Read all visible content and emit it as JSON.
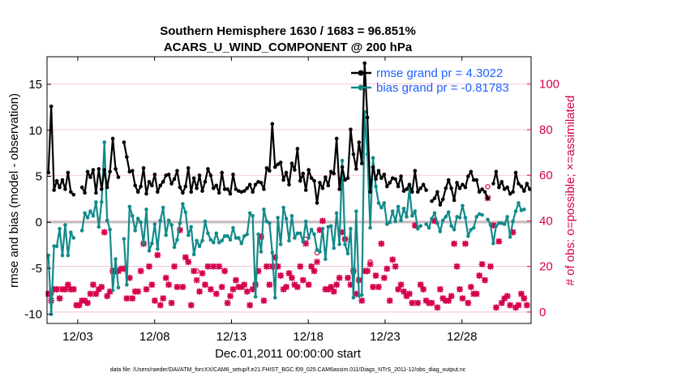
{
  "chart_data": {
    "type": "line",
    "title_line1": "Southern Hemisphere 1630 / 1683 = 96.851%",
    "title_line2": "ACARS_U_WIND_COMPONENT @ 200 hPa",
    "xlabel": "Dec.01,2011 00:00:00 start",
    "ylabel": "rmse and bias (model - observation)",
    "y2label": "# of obs: o=possible; ×=assimilated",
    "footer": "data file: /Users/raeder/DAI/ATM_forcXX/CAM6_setup/f.e21.FHIST_BGC.f09_025.CAM6assim.011/Diags_NTrS_2011-12/obs_diag_output.nc",
    "xlim": [
      0,
      31.5
    ],
    "ylim": [
      -11,
      18
    ],
    "y2lim": [
      -5,
      112
    ],
    "xticks": [
      2,
      7,
      12,
      17,
      22,
      27
    ],
    "xtick_labels": [
      "12/03",
      "12/08",
      "12/13",
      "12/18",
      "12/23",
      "12/28"
    ],
    "yticks": [
      -10,
      -5,
      0,
      5,
      10,
      15
    ],
    "ytick_labels": [
      "-10",
      "-5",
      "0",
      "5",
      "10",
      "15"
    ],
    "y2ticks": [
      0,
      20,
      40,
      60,
      80,
      100
    ],
    "y2tick_labels": [
      "0",
      "20",
      "40",
      "60",
      "80",
      "100"
    ],
    "colors": {
      "rmse": "#000000",
      "bias": "#138a8a",
      "obs": "#d6004f",
      "legend_text": "#1f5fff",
      "zero_line": "#c0c0c0",
      "grid": "#f2b8cc"
    },
    "series": [
      {
        "name": "rmse",
        "legend": "rmse grand pr = 4.3022",
        "values": [
          5.4,
          12.6,
          3.5,
          4.5,
          3.8,
          4.6,
          3.6,
          5.4,
          3.3,
          3.0,
          null,
          null,
          3.8,
          3.2,
          5.5,
          4.9,
          5.7,
          3.2,
          5.8,
          3.6,
          5.7,
          3.8,
          5.5,
          9.1,
          5.8,
          4.9,
          null,
          8.7,
          7.1,
          5.5,
          5.6,
          4.0,
          3.3,
          3.9,
          5.9,
          3.1,
          4.4,
          4.0,
          5.2,
          3.3,
          4.0,
          4.4,
          5.1,
          5.2,
          4.2,
          4.7,
          5.6,
          3.8,
          3.2,
          3.9,
          5.9,
          3.3,
          4.8,
          3.7,
          5.1,
          3.4,
          4.4,
          5.8,
          5.1,
          3.7,
          4.0,
          3.2,
          5.4,
          3.6,
          3.6,
          3.1,
          5.2,
          3.6,
          3.4,
          3.3,
          3.4,
          3.7,
          4.1,
          3.3,
          4.1,
          4.4,
          4.3,
          3.6,
          5.9,
          5.6,
          10.7,
          6.0,
          6.3,
          6.5,
          4.6,
          5.4,
          4.1,
          6.4,
          5.7,
          8.0,
          4.5,
          5.3,
          3.5,
          5.7,
          4.8,
          4.5,
          2.1,
          4.3,
          3.7,
          4.9,
          4.0,
          5.5,
          5.3,
          9.1,
          3.6,
          6.0,
          4.6,
          4.8,
          10.1,
          7.4,
          5.8,
          8.7,
          6.4,
          17.3,
          11.4,
          3.3,
          6.0,
          4.7,
          5.6,
          4.8,
          5.2,
          3.9,
          4.3,
          4.8,
          4.7,
          3.9,
          5.0,
          3.4,
          3.6,
          4.1,
          3.3,
          5.6,
          3.3,
          3.7,
          4.1,
          3.5,
          null,
          2.3,
          2.6,
          3.3,
          1.9,
          2.5,
          3.7,
          4.6,
          3.7,
          2.4,
          4.3,
          3.7,
          4.1,
          3.8,
          5.0,
          5.5,
          4.6,
          4.6,
          3.3,
          3.6,
          3.3,
          2.6,
          null,
          4.2,
          5.5,
          3.8,
          4.4,
          3.6,
          3.8,
          3.1,
          3.3,
          5.4,
          4.2,
          3.9,
          3.4,
          4.2,
          3.6
        ]
      },
      {
        "name": "bias",
        "legend": "bias grand pr = -0.81783",
        "values": [
          -3.6,
          -10.0,
          -2.6,
          -2.6,
          -0.7,
          -3.6,
          -0.3,
          -3.6,
          -1.1,
          -1.7,
          null,
          null,
          -0.9,
          1.0,
          0.5,
          1.2,
          0.7,
          2.2,
          -0.5,
          2.2,
          8.7,
          0.2,
          -0.8,
          -7.4,
          -4.0,
          -7.1,
          null,
          -1.8,
          -6.8,
          1.7,
          0.7,
          -0.9,
          0.4,
          0.0,
          -2.3,
          1.4,
          -3.1,
          -2.3,
          -0.2,
          -2.9,
          0.2,
          1.6,
          -1.4,
          0.2,
          -0.3,
          -2.7,
          -1.9,
          -0.1,
          2.0,
          1.1,
          -1.4,
          -0.5,
          -3.5,
          -2.0,
          -2.6,
          -2.0,
          0.1,
          -1.2,
          -1.9,
          -2.2,
          -1.2,
          -2.2,
          -2.0,
          -1.5,
          -1.5,
          -1.9,
          -0.6,
          -1.7,
          -1.7,
          -2.3,
          -1.5,
          -1.3,
          1.0,
          0.7,
          -8.1,
          -1.3,
          -3.2,
          1.4,
          0.1,
          -0.1,
          -3.3,
          -8.2,
          0.5,
          -2.4,
          1.6,
          0.4,
          -2.0,
          0.7,
          -1.7,
          -1.2,
          -1.2,
          -2.1,
          0.1,
          -1.7,
          -0.8,
          -1.3,
          -3.0,
          -3.2,
          -0.7,
          -4.0,
          -0.5,
          -0.4,
          -2.8,
          1.0,
          -2.4,
          6.7,
          -2.4,
          -3.4,
          -0.7,
          -8.2,
          1.2,
          -8.0,
          -7.9,
          12.0,
          7.4,
          -0.6,
          7.0,
          3.9,
          2.1,
          1.6,
          2.1,
          -0.2,
          0.0,
          1.2,
          0.1,
          1.7,
          0.2,
          1.5,
          0.6,
          3.6,
          0.7,
          1.2,
          -0.7,
          -0.4,
          null,
          -0.2,
          -0.6,
          0.4,
          1.0,
          -0.1,
          -1.0,
          0.2,
          0.6,
          1.1,
          -0.4,
          -0.8,
          0.6,
          0.5,
          1.8,
          0.5,
          -1.5,
          -0.8,
          -0.6,
          0.6,
          0.9,
          0.8,
          null,
          0.3,
          -0.3,
          -2.3,
          -0.4,
          -0.1,
          -0.1,
          -0.2,
          0.6,
          -1.6,
          0.1,
          1.2,
          2.1,
          1.3,
          1.4
        ]
      }
    ],
    "obs_possible": [
      8,
      8,
      10,
      10,
      6,
      10,
      10,
      12,
      10,
      10,
      3,
      3,
      5,
      5,
      4,
      8,
      12,
      8,
      10,
      11,
      35,
      7,
      9,
      18,
      18,
      18,
      19,
      19,
      6,
      15,
      6,
      9,
      9,
      18,
      30,
      10,
      20,
      12,
      5,
      25,
      3,
      6,
      15,
      12,
      4,
      20,
      11,
      36,
      11,
      24,
      22,
      3,
      18,
      18,
      9,
      17,
      12,
      20,
      10,
      20,
      8,
      20,
      11,
      18,
      4,
      7,
      10,
      14,
      11,
      11,
      12,
      9,
      3,
      10,
      12,
      18,
      33,
      5,
      20,
      12,
      20,
      24,
      20,
      16,
      10,
      11,
      17,
      15,
      12,
      11,
      20,
      14,
      32,
      12,
      20,
      18,
      26,
      36,
      40,
      10,
      10,
      11,
      9,
      12,
      15,
      35,
      32,
      15,
      12,
      18,
      8,
      14,
      5,
      18,
      18,
      22,
      11,
      16,
      11,
      30,
      15,
      19,
      5,
      23,
      20,
      10,
      12,
      9,
      7,
      8,
      4,
      38,
      4,
      12,
      10,
      5,
      4,
      4,
      40,
      2,
      10,
      6,
      5,
      5,
      7,
      30,
      20,
      10,
      6,
      30,
      4,
      11,
      8,
      8,
      16,
      21,
      14,
      55,
      20,
      38,
      2,
      31,
      4,
      6,
      7,
      3,
      35,
      2,
      3,
      8,
      6,
      3
    ],
    "obs_assimilated": [
      8,
      5,
      10,
      10,
      6,
      10,
      10,
      12,
      10,
      10,
      3,
      3,
      5,
      5,
      4,
      8,
      12,
      8,
      10,
      11,
      35,
      7,
      9,
      18,
      18,
      18,
      19,
      19,
      6,
      15,
      6,
      9,
      9,
      18,
      30,
      10,
      20,
      12,
      5,
      25,
      3,
      6,
      15,
      12,
      4,
      20,
      11,
      36,
      11,
      24,
      22,
      3,
      18,
      14,
      9,
      17,
      12,
      20,
      10,
      20,
      8,
      20,
      11,
      18,
      4,
      7,
      10,
      14,
      11,
      11,
      12,
      9,
      3,
      10,
      12,
      18,
      33,
      5,
      20,
      12,
      20,
      24,
      20,
      16,
      10,
      11,
      17,
      15,
      12,
      11,
      20,
      14,
      30,
      12,
      20,
      18,
      22,
      36,
      40,
      10,
      10,
      11,
      9,
      12,
      15,
      35,
      32,
      15,
      12,
      18,
      8,
      14,
      5,
      18,
      18,
      21,
      11,
      16,
      11,
      30,
      15,
      19,
      5,
      23,
      20,
      10,
      12,
      9,
      7,
      8,
      4,
      38,
      4,
      12,
      10,
      5,
      4,
      4,
      40,
      2,
      10,
      6,
      5,
      5,
      7,
      30,
      20,
      10,
      6,
      30,
      4,
      11,
      8,
      8,
      16,
      21,
      14,
      50,
      20,
      38,
      2,
      31,
      4,
      6,
      7,
      3,
      35,
      2,
      3,
      8,
      6,
      3
    ]
  }
}
